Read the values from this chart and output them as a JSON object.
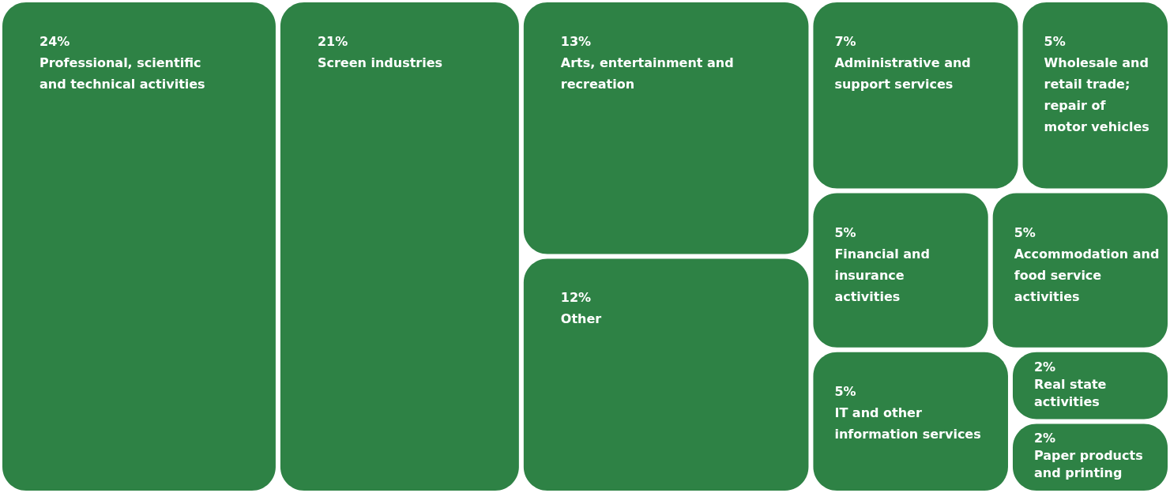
{
  "chart_data": {
    "type": "other",
    "categories": [
      "Professional, scientific and technical activities",
      "Screen industries",
      "Arts, entertainment and recreation",
      "Other",
      "Administrative and support services",
      "Wholesale and retail trade; repair of motor vehicles",
      "Financial and insurance activities",
      "Accommodation and food service activities",
      "IT and other information services",
      "Real state activities",
      "Paper products and printing"
    ],
    "values": [
      24,
      21,
      13,
      12,
      7,
      5,
      5,
      5,
      5,
      2,
      2
    ],
    "value_labels": [
      "24%",
      "21%",
      "13%",
      "12%",
      "7%",
      "5%",
      "5%",
      "5%",
      "5%",
      "2%",
      "2%"
    ],
    "color": "#2e8245"
  }
}
